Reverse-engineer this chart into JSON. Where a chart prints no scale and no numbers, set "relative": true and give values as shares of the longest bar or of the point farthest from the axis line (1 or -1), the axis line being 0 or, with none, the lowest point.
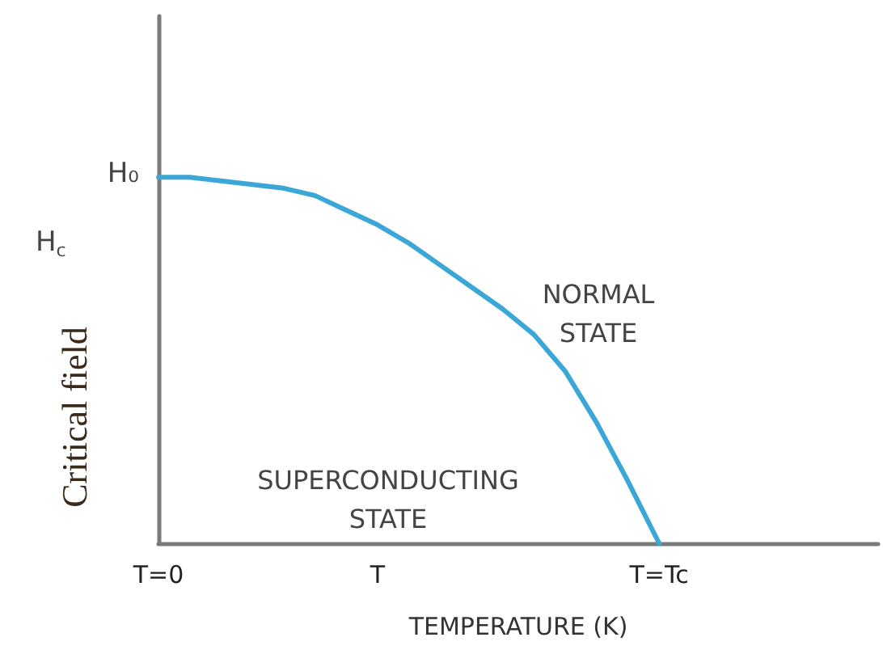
{
  "chart_data": {
    "type": "line",
    "relative": true,
    "xlabel": "TEMPERATURE (K)",
    "ylabel": "Critical field",
    "categories": [
      "T=0",
      null,
      null,
      null,
      null,
      null,
      null,
      "T",
      null,
      null,
      null,
      null,
      null,
      null,
      null,
      null,
      "T=Tc",
      null,
      null,
      null,
      null,
      null,
      null,
      null
    ],
    "values": [
      1,
      1,
      0.99,
      0.98,
      0.97,
      0.95,
      0.91,
      0.87,
      0.82,
      0.76,
      0.7,
      0.64,
      0.57,
      0.47,
      0.33,
      0.17,
      0,
      null,
      null,
      null,
      null,
      null,
      null,
      null
    ],
    "color": "#3ba7d6",
    "marker": "none",
    "line_style": "solid",
    "grid": false,
    "annotations": [
      {
        "text": "H₀",
        "x": "T=0",
        "y": 1
      },
      "H$_{c}$",
      "NORMAL\nSTATE",
      "SUPERCONDUCTING\nSTATE"
    ]
  }
}
